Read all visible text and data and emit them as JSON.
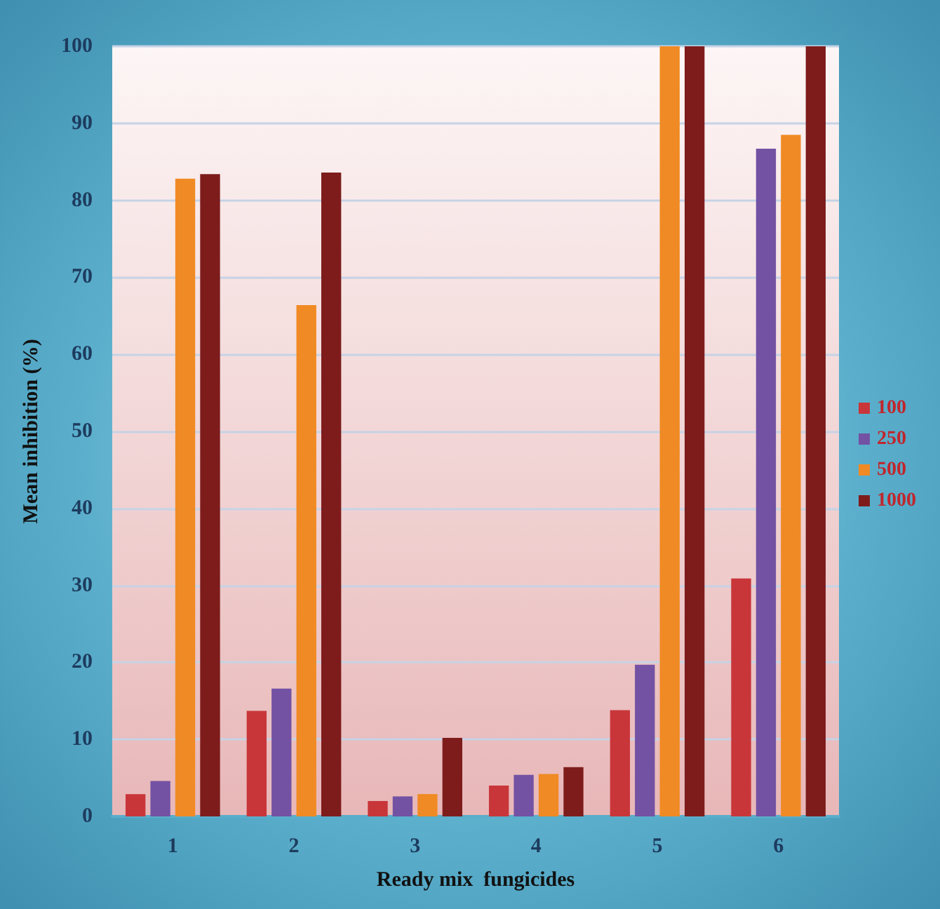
{
  "chart_data": {
    "type": "bar",
    "xlabel": "Ready mix  fungicides",
    "ylabel": "Mean inhibition (%)",
    "categories": [
      "1",
      "2",
      "3",
      "4",
      "5",
      "6"
    ],
    "series": [
      {
        "name": "100",
        "color": "#c8363a",
        "values": [
          2.9,
          13.7,
          2.0,
          4.0,
          13.8,
          30.9
        ]
      },
      {
        "name": "250",
        "color": "#7352a4",
        "values": [
          4.6,
          16.6,
          2.6,
          5.4,
          19.7,
          86.7
        ]
      },
      {
        "name": "500",
        "color": "#f08a24",
        "values": [
          82.8,
          66.4,
          2.9,
          5.5,
          100,
          88.5
        ]
      },
      {
        "name": "1000",
        "color": "#7e1c1c",
        "values": [
          83.4,
          83.6,
          10.2,
          6.4,
          100,
          100
        ]
      }
    ],
    "ylim": [
      0,
      100
    ],
    "yticks": [
      0,
      10,
      20,
      30,
      40,
      50,
      60,
      70,
      80,
      90,
      100
    ],
    "grid": "y",
    "legend": "right"
  }
}
